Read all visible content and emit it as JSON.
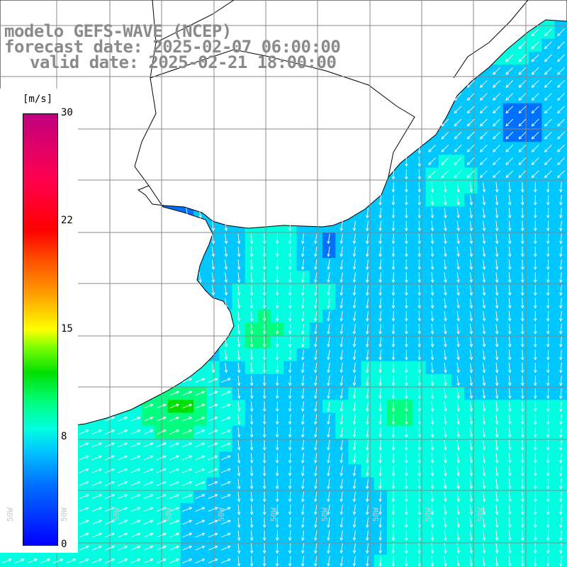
{
  "title": {
    "line1": "modelo GEFS-WAVE (NCEP)",
    "line2": "forecast date: 2025-02-07 06:00:00",
    "line3": "valid date: 2025-02-21 18:00:00"
  },
  "colorbar": {
    "unit": "[m/s]",
    "min": 0,
    "max": 30,
    "ticks": [
      "30",
      "22",
      "15",
      "8",
      "0"
    ],
    "tick_values": [
      30,
      22,
      15,
      8,
      0
    ]
  },
  "map": {
    "land_color": "#ffffff",
    "coastline_color": "#000000",
    "grid_color": "#888888",
    "arrow_color": "#ffffff",
    "wind_speed_color_scale": [
      "#0000ff",
      "#0070ff",
      "#00c8ff",
      "#00ffe0",
      "#00ff80",
      "#00e000",
      "#80ff00",
      "#ffff00",
      "#ffa000",
      "#ff5000",
      "#ff0000",
      "#ff0050",
      "#c00080"
    ],
    "lon_labels": [
      "50W",
      "50W",
      "50W",
      "50W",
      "50W",
      "50W",
      "50W",
      "50W",
      "50W",
      "50W"
    ]
  }
}
